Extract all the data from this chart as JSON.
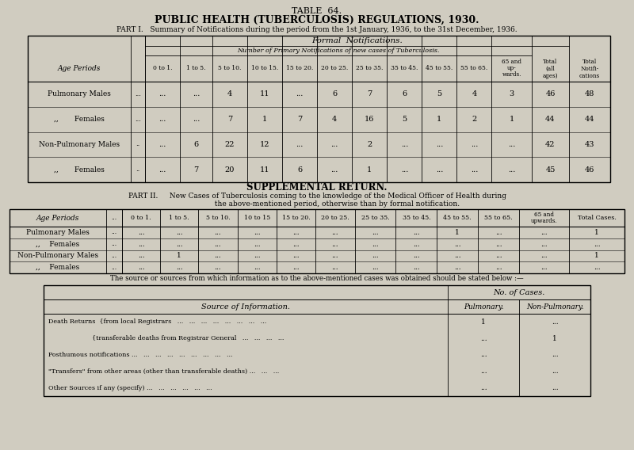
{
  "title1": "TABLE  64.",
  "title2": "PUBLIC HEALTH (TUBERCULOSIS) REGULATIONS, 1930.",
  "part1_label": "PART I.   Summary of Notifications during the period from the 1st January, 1936, to the 31st December, 1936.",
  "bg_color": "#d0ccc0",
  "table1": {
    "header1": "Formal  Notifications.",
    "header2": "Number of Primary Notifications of new cases of Tuberculosis.",
    "age_col_label": "Age Periods",
    "age_periods": [
      "0 to 1.",
      "1 to 5.",
      "5 to 10.",
      "10 to 15.",
      "15 to 20.",
      "20 to 25.",
      "25 to 35.",
      "35 to 45.",
      "45 to 55.",
      "55 to 65.",
      "65 and up-wards.",
      "Total (all ages)",
      "Total Notifi-cations"
    ],
    "rows": [
      {
        "label": "Pulmonary Males",
        "dots": "...",
        "vals": [
          "...",
          "...",
          "4",
          "11",
          "...",
          "6",
          "7",
          "6",
          "5",
          "4",
          "3",
          "46",
          "48"
        ]
      },
      {
        "label": ",,       Females",
        "dots": "...",
        "vals": [
          "...",
          "...",
          "7",
          "1",
          "7",
          "4",
          "16",
          "5",
          "1",
          "2",
          "1",
          "44",
          "44"
        ]
      },
      {
        "label": "Non-Pulmonary Males",
        "dots": "..",
        "vals": [
          "...",
          "6",
          "22",
          "12",
          "...",
          "...",
          "2",
          "...",
          "...",
          "...",
          "...",
          "42",
          "43"
        ]
      },
      {
        "label": ",,       Females",
        "dots": "..",
        "vals": [
          "...",
          "7",
          "20",
          "11",
          "6",
          "...",
          "1",
          "...",
          "...",
          "...",
          "...",
          "45",
          "46"
        ]
      }
    ]
  },
  "supplemental_title": "SUPPLEMENTAL RETURN.",
  "part2_line1": "PART II.     New Cases of Tuberculosis coming to the knowledge of the Medical Officer of Health during",
  "part2_line2": "                  the above-mentioned period, otherwise than by formal notification.",
  "table2": {
    "age_periods": [
      "0 to 1.",
      "1 to 5.",
      "5 to 10.",
      "10 to 15",
      "15 to 20.",
      "20 to 25.",
      "25 to 35.",
      "35 to 45.",
      "45 to 55.",
      "55 to 65.",
      "65 and upwards.",
      "Total Cases."
    ],
    "rows": [
      {
        "label": "Pulmonary Males",
        "dots": "...",
        "vals": [
          "...",
          "...",
          "...",
          "...",
          "...",
          "...",
          "...",
          "...",
          "1",
          "...",
          "...",
          "1"
        ]
      },
      {
        "label": ",,    Females",
        "dots": "...",
        "vals": [
          "...",
          "...",
          "...",
          "...",
          "...",
          "...",
          "...",
          "...",
          "...",
          "...",
          "...",
          "..."
        ]
      },
      {
        "label": "Non-Pulmonary Males",
        "dots": "...",
        "vals": [
          "...",
          "1",
          "...",
          "...",
          "...",
          "...",
          "...",
          "...",
          "...",
          "...",
          "...",
          "1"
        ]
      },
      {
        "label": ",,    Females",
        "dots": "...",
        "vals": [
          "...",
          "...",
          "...",
          "...",
          "...",
          "...",
          "...",
          "...",
          "...",
          "...",
          "...",
          "..."
        ]
      }
    ]
  },
  "source_label": "The source or sources from which information as to the above-mentioned cases was obtained should be stated below :—",
  "table3": {
    "col1": "Source of Information.",
    "col2": "No. of Cases.",
    "subcol1": "Pulmonary.",
    "subcol2": "Non-Pulmonary.",
    "rows": [
      {
        "label": "Death Returns  {from local Registrars   ...   ...   ...   ...   ...   ...   ...   ...",
        "p": "1",
        "np": "..."
      },
      {
        "label": "                      {transferable deaths from Registrar General   ...   ...   ...   ...",
        "p": "...",
        "np": "1"
      },
      {
        "label": "Posthumous notifications ...   ...   ...   ...   ...   ...   ...   ...   ...",
        "p": "...",
        "np": "..."
      },
      {
        "label": "\"Transfers\" from other areas (other than transferable deaths) ...   ...   ...",
        "p": "...",
        "np": "..."
      },
      {
        "label": "Other Sources if any (specify) ...   ...   ...   ...   ...   ...",
        "p": "...",
        "np": "..."
      }
    ]
  }
}
